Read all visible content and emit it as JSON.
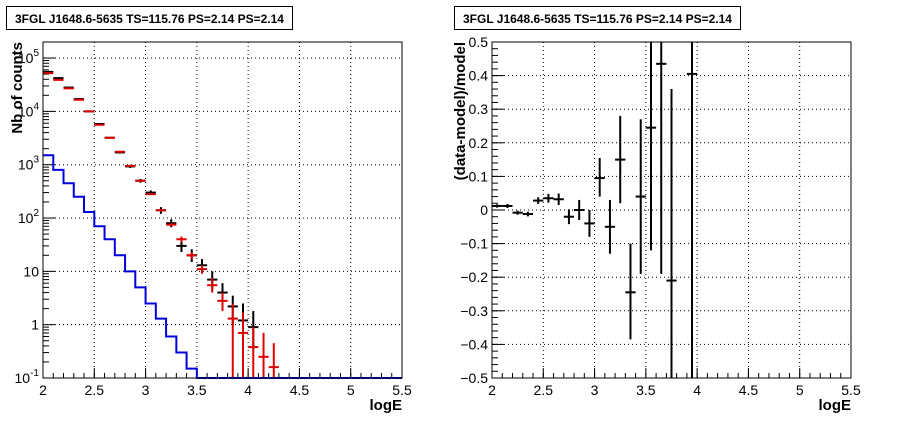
{
  "chart_data": [
    {
      "type": "line",
      "title": "3FGL J1648.6-5635 TS=115.76 PS=2.14 PS=2.14",
      "xlabel": "logE",
      "ylabel": "Nb of counts",
      "xlim": [
        2,
        5.5
      ],
      "ylim": [
        0.1,
        200000
      ],
      "yscale": "log",
      "grid": true,
      "x_ticks": [
        "2",
        "2.5",
        "3",
        "3.5",
        "4",
        "4.5",
        "5",
        "5.5"
      ],
      "y_ticks": [
        {
          "value": 0.1,
          "base": "10",
          "exp": "-1"
        },
        {
          "value": 1,
          "base": "1",
          "exp": ""
        },
        {
          "value": 10,
          "base": "10",
          "exp": ""
        },
        {
          "value": 100,
          "base": "10",
          "exp": "2"
        },
        {
          "value": 1000,
          "base": "10",
          "exp": "3"
        },
        {
          "value": 10000,
          "base": "10",
          "exp": "4"
        },
        {
          "value": 100000,
          "base": "10",
          "exp": "5"
        }
      ],
      "series": [
        {
          "color": "#000000",
          "style": "errorbar",
          "points": [
            {
              "x": 2.05,
              "y": 55000,
              "lo": 54500,
              "hi": 55500
            },
            {
              "x": 2.15,
              "y": 42000,
              "lo": 41600,
              "hi": 42400
            },
            {
              "x": 2.25,
              "y": 28000,
              "lo": 27700,
              "hi": 28300
            },
            {
              "x": 2.35,
              "y": 17000,
              "lo": 16700,
              "hi": 17300
            },
            {
              "x": 2.45,
              "y": 10000,
              "lo": 9800,
              "hi": 10200
            },
            {
              "x": 2.55,
              "y": 5800,
              "lo": 5650,
              "hi": 5950
            },
            {
              "x": 2.65,
              "y": 3200,
              "lo": 3090,
              "hi": 3310
            },
            {
              "x": 2.75,
              "y": 1700,
              "lo": 1620,
              "hi": 1780
            },
            {
              "x": 2.85,
              "y": 930,
              "lo": 870,
              "hi": 990
            },
            {
              "x": 2.95,
              "y": 500,
              "lo": 460,
              "hi": 540
            },
            {
              "x": 3.05,
              "y": 300,
              "lo": 270,
              "hi": 330
            },
            {
              "x": 3.15,
              "y": 140,
              "lo": 120,
              "hi": 160
            },
            {
              "x": 3.25,
              "y": 80,
              "lo": 67,
              "hi": 95
            },
            {
              "x": 3.35,
              "y": 30,
              "lo": 23,
              "hi": 38
            },
            {
              "x": 3.45,
              "y": 20,
              "lo": 15,
              "hi": 26
            },
            {
              "x": 3.55,
              "y": 13,
              "lo": 9.5,
              "hi": 17
            },
            {
              "x": 3.65,
              "y": 7,
              "lo": 4.5,
              "hi": 10
            },
            {
              "x": 3.75,
              "y": 4,
              "lo": 2.2,
              "hi": 6
            },
            {
              "x": 3.85,
              "y": 2.2,
              "lo": 1,
              "hi": 3.5
            },
            {
              "x": 3.95,
              "y": 1.2,
              "lo": 0.5,
              "hi": 2.5
            },
            {
              "x": 4.05,
              "y": 0.9,
              "lo": 0.35,
              "hi": 1.8
            }
          ]
        },
        {
          "color": "#dd0000",
          "style": "errorbar",
          "points": [
            {
              "x": 2.05,
              "y": 52000,
              "lo": 51800,
              "hi": 52200
            },
            {
              "x": 2.15,
              "y": 39000,
              "lo": 38800,
              "hi": 39200
            },
            {
              "x": 2.25,
              "y": 27000,
              "lo": 26850,
              "hi": 27150
            },
            {
              "x": 2.35,
              "y": 16500,
              "lo": 16400,
              "hi": 16600
            },
            {
              "x": 2.45,
              "y": 10000,
              "lo": 9920,
              "hi": 10080
            },
            {
              "x": 2.55,
              "y": 5600,
              "lo": 5550,
              "hi": 5650
            },
            {
              "x": 2.65,
              "y": 3200,
              "lo": 3170,
              "hi": 3230
            },
            {
              "x": 2.75,
              "y": 1750,
              "lo": 1730,
              "hi": 1770
            },
            {
              "x": 2.85,
              "y": 950,
              "lo": 935,
              "hi": 965
            },
            {
              "x": 2.95,
              "y": 500,
              "lo": 490,
              "hi": 510
            },
            {
              "x": 3.05,
              "y": 280,
              "lo": 270,
              "hi": 290
            },
            {
              "x": 3.15,
              "y": 140,
              "lo": 134,
              "hi": 146
            },
            {
              "x": 3.25,
              "y": 75,
              "lo": 70,
              "hi": 80
            },
            {
              "x": 3.35,
              "y": 40,
              "lo": 35,
              "hi": 45
            },
            {
              "x": 3.45,
              "y": 20,
              "lo": 17,
              "hi": 23
            },
            {
              "x": 3.55,
              "y": 11,
              "lo": 9,
              "hi": 13
            },
            {
              "x": 3.65,
              "y": 5.5,
              "lo": 4,
              "hi": 7.5
            },
            {
              "x": 3.75,
              "y": 2.8,
              "lo": 1.8,
              "hi": 4
            },
            {
              "x": 3.85,
              "y": 1.3,
              "lo": 0.1,
              "hi": 2.5
            },
            {
              "x": 3.95,
              "y": 0.7,
              "lo": 0.1,
              "hi": 1.7
            },
            {
              "x": 4.05,
              "y": 0.38,
              "lo": 0.1,
              "hi": 0.9
            },
            {
              "x": 4.15,
              "y": 0.25,
              "lo": 0.1,
              "hi": 0.7
            },
            {
              "x": 4.25,
              "y": 0.16,
              "lo": 0.1,
              "hi": 0.45
            }
          ]
        },
        {
          "color": "#0000dd",
          "style": "step",
          "bin_edges": [
            2.0,
            2.1,
            2.2,
            2.3,
            2.4,
            2.5,
            2.6,
            2.7,
            2.8,
            2.9,
            3.0,
            3.1,
            3.2,
            3.3,
            3.4,
            3.5,
            5.5
          ],
          "values": [
            1500,
            800,
            450,
            250,
            130,
            70,
            40,
            20,
            10,
            5,
            2.5,
            1.3,
            0.6,
            0.3,
            0.15,
            0.1
          ]
        }
      ]
    },
    {
      "type": "scatter",
      "title": "3FGL J1648.6-5635 TS=115.76 PS=2.14 PS=2.14",
      "xlabel": "logE",
      "ylabel": "(data-model)/model",
      "xlim": [
        2,
        5.5
      ],
      "ylim": [
        -0.5,
        0.5
      ],
      "grid": true,
      "x_ticks": [
        "2",
        "2.5",
        "3",
        "3.5",
        "4",
        "4.5",
        "5",
        "5.5"
      ],
      "y_ticks": [
        "−0.5",
        "−0.4",
        "−0.3",
        "−0.2",
        "−0.1",
        "0",
        "0.1",
        "0.2",
        "0.3",
        "0.4",
        "0.5"
      ],
      "series": [
        {
          "color": "#000000",
          "style": "errorbar",
          "points": [
            {
              "x": 2.05,
              "y": 0.012,
              "lo": 0.007,
              "hi": 0.017
            },
            {
              "x": 2.15,
              "y": 0.012,
              "lo": 0.006,
              "hi": 0.018
            },
            {
              "x": 2.25,
              "y": -0.008,
              "lo": -0.014,
              "hi": -0.002
            },
            {
              "x": 2.35,
              "y": -0.012,
              "lo": -0.019,
              "hi": -0.005
            },
            {
              "x": 2.45,
              "y": 0.028,
              "lo": 0.018,
              "hi": 0.038
            },
            {
              "x": 2.55,
              "y": 0.035,
              "lo": 0.022,
              "hi": 0.048
            },
            {
              "x": 2.65,
              "y": 0.032,
              "lo": 0.015,
              "hi": 0.049
            },
            {
              "x": 2.75,
              "y": -0.02,
              "lo": -0.042,
              "hi": 0.002
            },
            {
              "x": 2.85,
              "y": 0.0,
              "lo": -0.03,
              "hi": 0.03
            },
            {
              "x": 2.95,
              "y": -0.04,
              "lo": -0.08,
              "hi": 0.0
            },
            {
              "x": 3.05,
              "y": 0.095,
              "lo": 0.04,
              "hi": 0.155
            },
            {
              "x": 3.15,
              "y": -0.05,
              "lo": -0.13,
              "hi": 0.03
            },
            {
              "x": 3.25,
              "y": 0.15,
              "lo": 0.02,
              "hi": 0.28
            },
            {
              "x": 3.35,
              "y": -0.245,
              "lo": -0.385,
              "hi": -0.1
            },
            {
              "x": 3.45,
              "y": 0.04,
              "lo": -0.19,
              "hi": 0.27
            },
            {
              "x": 3.55,
              "y": 0.245,
              "lo": -0.12,
              "hi": 0.5
            },
            {
              "x": 3.65,
              "y": 0.435,
              "lo": -0.19,
              "hi": 0.5
            },
            {
              "x": 3.75,
              "y": -0.21,
              "lo": -0.5,
              "hi": 0.36
            },
            {
              "x": 3.95,
              "y": 0.405,
              "lo": -0.5,
              "hi": 0.5
            }
          ]
        }
      ]
    }
  ]
}
